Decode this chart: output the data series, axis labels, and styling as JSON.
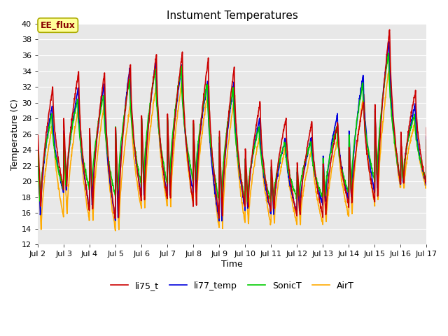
{
  "title": "Instument Temperatures",
  "xlabel": "Time",
  "ylabel": "Temperature (C)",
  "ylim": [
    12,
    40
  ],
  "background_color": "#ffffff",
  "plot_bg_color": "#e8e8e8",
  "grid_color": "#ffffff",
  "annotation_text": "EE_flux",
  "annotation_bg": "#ffff99",
  "annotation_edge": "#aaaa00",
  "series": {
    "li75_t": {
      "color": "#cc0000",
      "lw": 1.2
    },
    "li77_temp": {
      "color": "#0000dd",
      "lw": 1.2
    },
    "SonicT": {
      "color": "#00cc00",
      "lw": 1.2
    },
    "AirT": {
      "color": "#ffaa00",
      "lw": 1.2
    }
  },
  "xtick_labels": [
    "Jul 2",
    "Jul 3",
    "Jul 4",
    "Jul 5",
    "Jul 6",
    "Jul 7",
    "Jul 8",
    "Jul 9",
    "Jul 10",
    "Jul 11",
    "Jul 12",
    "Jul 13",
    "Jul 14",
    "Jul 15",
    "Jul 16",
    "Jul 17"
  ],
  "xtick_positions": [
    2,
    3,
    4,
    5,
    6,
    7,
    8,
    9,
    10,
    11,
    12,
    13,
    14,
    15,
    16,
    17
  ],
  "ytick_positions": [
    12,
    14,
    16,
    18,
    20,
    22,
    24,
    26,
    28,
    30,
    32,
    34,
    36,
    38,
    40
  ]
}
